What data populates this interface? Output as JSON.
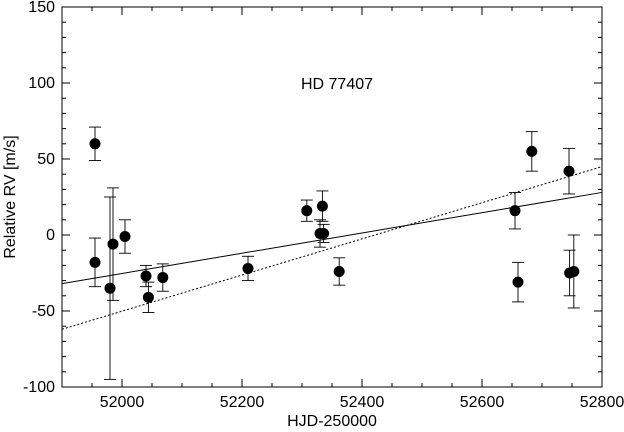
{
  "chart_data": {
    "type": "scatter",
    "title": "",
    "annotation": "HD 77407",
    "xlabel": "HJD-250000",
    "ylabel": "Relative RV [m/s]",
    "xlim": [
      51900,
      52800
    ],
    "ylim": [
      -100,
      150
    ],
    "xticks": [
      52000,
      52200,
      52400,
      52600,
      52800
    ],
    "yticks": [
      -100,
      -50,
      0,
      50,
      100,
      150
    ],
    "grid": false,
    "points": [
      {
        "x": 51955,
        "y": 60,
        "err": 11
      },
      {
        "x": 51955,
        "y": -18,
        "err": 16
      },
      {
        "x": 51980,
        "y": -35,
        "err": 60
      },
      {
        "x": 51985,
        "y": -6,
        "err": 37
      },
      {
        "x": 52005,
        "y": -1,
        "err": 11
      },
      {
        "x": 52040,
        "y": -27,
        "err": 7
      },
      {
        "x": 52044,
        "y": -41,
        "err": 10
      },
      {
        "x": 52068,
        "y": -28,
        "err": 9
      },
      {
        "x": 52210,
        "y": -22,
        "err": 8
      },
      {
        "x": 52308,
        "y": 16,
        "err": 7
      },
      {
        "x": 52330,
        "y": 1,
        "err": 9
      },
      {
        "x": 52334,
        "y": 19,
        "err": 10
      },
      {
        "x": 52336,
        "y": 1,
        "err": 6
      },
      {
        "x": 52362,
        "y": -24,
        "err": 9
      },
      {
        "x": 52655,
        "y": 16,
        "err": 12
      },
      {
        "x": 52660,
        "y": -31,
        "err": 13
      },
      {
        "x": 52683,
        "y": 55,
        "err": 13
      },
      {
        "x": 52745,
        "y": 42,
        "err": 15
      },
      {
        "x": 52746,
        "y": -25,
        "err": 15
      },
      {
        "x": 52753,
        "y": -24,
        "err": 24
      }
    ],
    "fits": [
      {
        "style": "solid",
        "x": [
          51900,
          52800
        ],
        "y": [
          -32,
          28
        ]
      },
      {
        "style": "dotted",
        "x": [
          51900,
          52800
        ],
        "y": [
          -62,
          45
        ]
      }
    ],
    "colors": {
      "axis": "#000000",
      "points": "#000000",
      "background": "#ffffff"
    }
  }
}
